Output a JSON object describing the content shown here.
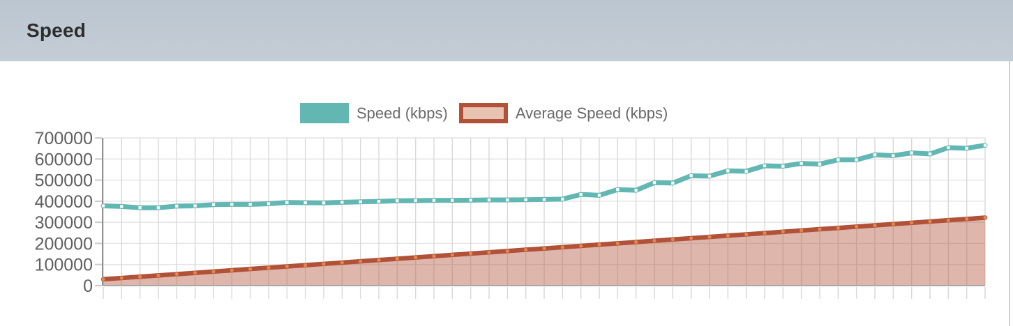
{
  "header": {
    "title": "Speed"
  },
  "legend": [
    {
      "label": "Speed (kbps)",
      "swatch_fill": "#62b7b2",
      "swatch_border": "#62b7b2"
    },
    {
      "label": "Average Speed (kbps)",
      "swatch_fill": "#e8c3b1",
      "swatch_border": "#b05138"
    }
  ],
  "chart_data": {
    "type": "line",
    "title": "",
    "xlabel": "",
    "ylabel": "",
    "grid": true,
    "legend_position": "top-center",
    "ylim": [
      0,
      700000
    ],
    "y_ticks": [
      0,
      100000,
      200000,
      300000,
      400000,
      500000,
      600000,
      700000
    ],
    "y_tick_labels": [
      "0",
      "100000",
      "200000",
      "300000",
      "400000",
      "500000",
      "600000",
      "700000"
    ],
    "x_tick_labels_visible": false,
    "point_count": 49,
    "series": [
      {
        "name": "Speed (kbps)",
        "color": "#62b7b2",
        "marker_color": "#f4fbfa",
        "area": false,
        "values": [
          378000,
          375000,
          369000,
          369000,
          377000,
          378000,
          384000,
          385000,
          385000,
          388000,
          394000,
          393000,
          392000,
          395000,
          397000,
          399000,
          402000,
          403000,
          404000,
          404000,
          405000,
          406000,
          406000,
          407000,
          408000,
          410000,
          432000,
          428000,
          455000,
          452000,
          488000,
          486000,
          521000,
          519000,
          544000,
          542000,
          568000,
          566000,
          579000,
          576000,
          596000,
          596000,
          620000,
          616000,
          629000,
          624000,
          654000,
          651000,
          665000
        ]
      },
      {
        "name": "Average Speed (kbps)",
        "color": "#b05138",
        "marker_color": "#e2874e",
        "area": true,
        "area_fill": "rgba(178,82,57,0.42)",
        "values": [
          30000,
          36100,
          42200,
          48300,
          54300,
          60400,
          66500,
          72600,
          78700,
          84800,
          90800,
          96900,
          103000,
          109100,
          115200,
          121300,
          127300,
          133400,
          139500,
          145600,
          151700,
          157800,
          163800,
          169900,
          176000,
          182100,
          188200,
          194300,
          200300,
          206400,
          212500,
          218600,
          224700,
          230800,
          236800,
          242900,
          249000,
          255100,
          261200,
          267300,
          273300,
          279400,
          285500,
          291600,
          297700,
          303800,
          309800,
          315900,
          322000
        ]
      }
    ],
    "style": {
      "grid_color": "#e3e3e3",
      "grid_overlay_color": "rgba(130,130,130,0.10)",
      "y_axis_color": "#8f8f8f",
      "x_axis_color": "#a8a8a8",
      "y_tick_color": "#c9c9c9",
      "x_tick_color": "#d9d9d9",
      "label_color": "#606060"
    }
  },
  "theme": {
    "header_background": "#c0c9d3",
    "panel_background": "#ffffff",
    "divider_color": "#ccd2d8"
  }
}
